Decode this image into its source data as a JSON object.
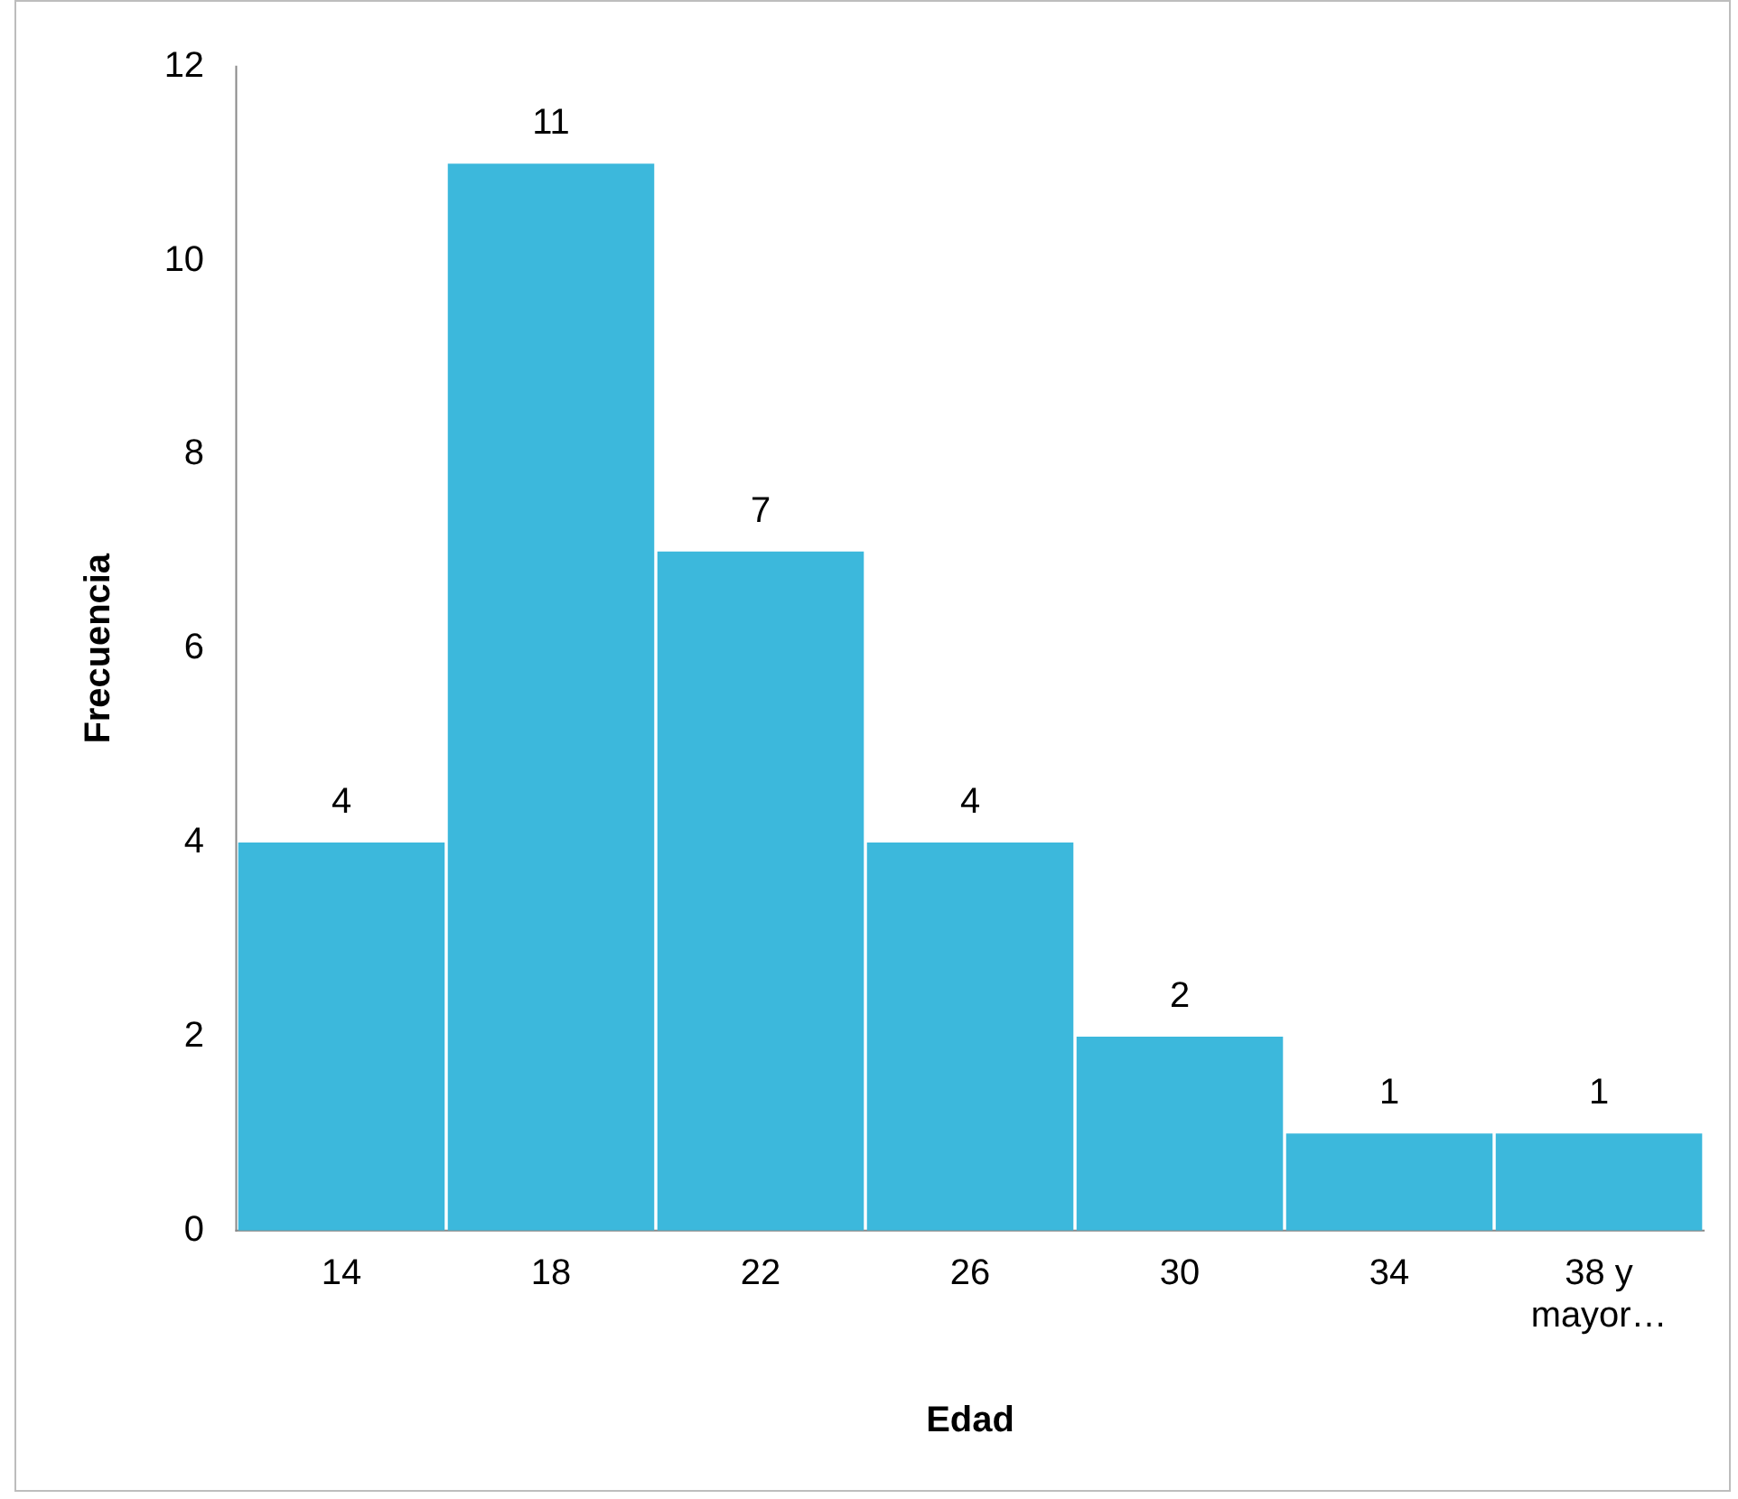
{
  "chart_data": {
    "type": "bar",
    "xlabel": "Edad",
    "ylabel": "Frecuencia",
    "categories": [
      "14",
      "18",
      "22",
      "26",
      "30",
      "34",
      "38 y mayor…"
    ],
    "values": [
      4,
      11,
      7,
      4,
      2,
      1,
      1
    ],
    "color": "#3cb8dc",
    "ylim": [
      0,
      12
    ],
    "yticks": [
      0,
      2,
      4,
      6,
      8,
      10,
      12
    ],
    "grid": false,
    "legend": false,
    "data_labels": true
  }
}
